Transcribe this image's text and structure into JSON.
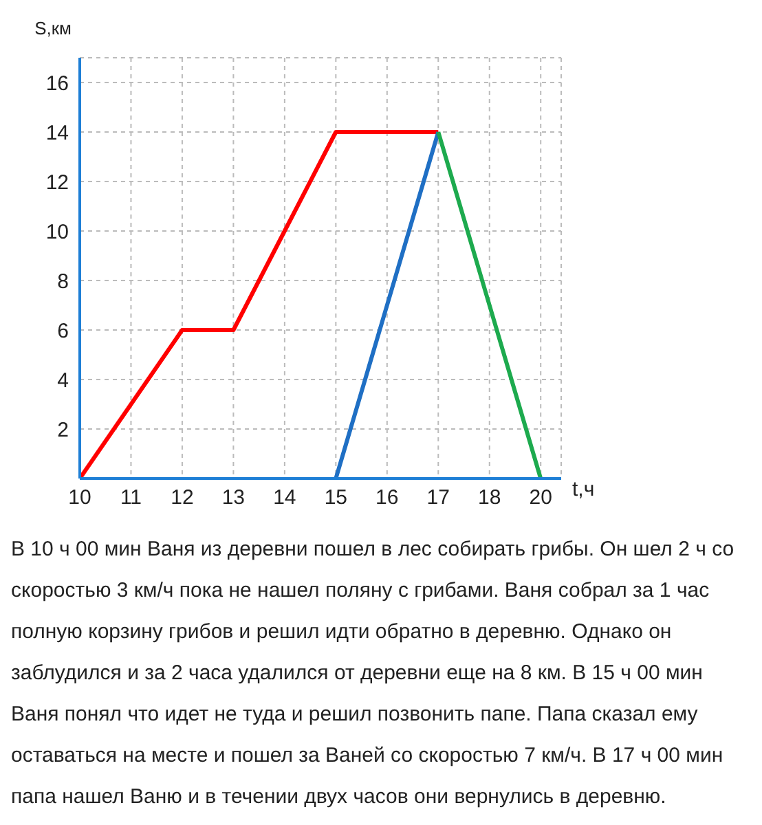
{
  "chart_data": {
    "type": "line",
    "xlabel": "t,ч",
    "ylabel": "S,км",
    "categories": [
      "10",
      "11",
      "12",
      "13",
      "14",
      "15",
      "16",
      "17",
      "18",
      "20"
    ],
    "series": [
      {
        "color": "#ff0000",
        "values": [
          0,
          3,
          6,
          6,
          10,
          14,
          14,
          14,
          null,
          null
        ]
      },
      {
        "color": "#1f6fc4",
        "values": [
          null,
          null,
          null,
          null,
          null,
          0,
          7,
          14,
          null,
          null
        ]
      },
      {
        "color": "#1daa4e",
        "values": [
          null,
          null,
          null,
          null,
          null,
          null,
          null,
          14,
          7,
          0
        ]
      }
    ],
    "ylim": [
      0,
      17
    ],
    "yticks": [
      2,
      4,
      6,
      8,
      10,
      12,
      14,
      16
    ],
    "grid": true,
    "legend": false,
    "marker": "none",
    "line_style": "solid",
    "annotations": [
      "В 10 ч 00 мин Ваня из деревни пошел в лес собирать грибы. Он шел 2 ч со скоростью 3 км/ч пока не нашел поляну с грибами. Ваня собрал за 1 час полную корзину грибов и решил идти обратно в деревню. Однако он заблудился и за 2 часа удалился от деревни еще на 8 км. В 15 ч 00 мин Ваня понял что идет не туда и решил позвонить папе. Папа сказал ему оставаться на месте и пошел за Ваней со скоростью 7 км/ч. В 17 ч 00 мин папа нашел Ваню и в течении двух часов они вернулись в деревню."
    ]
  }
}
